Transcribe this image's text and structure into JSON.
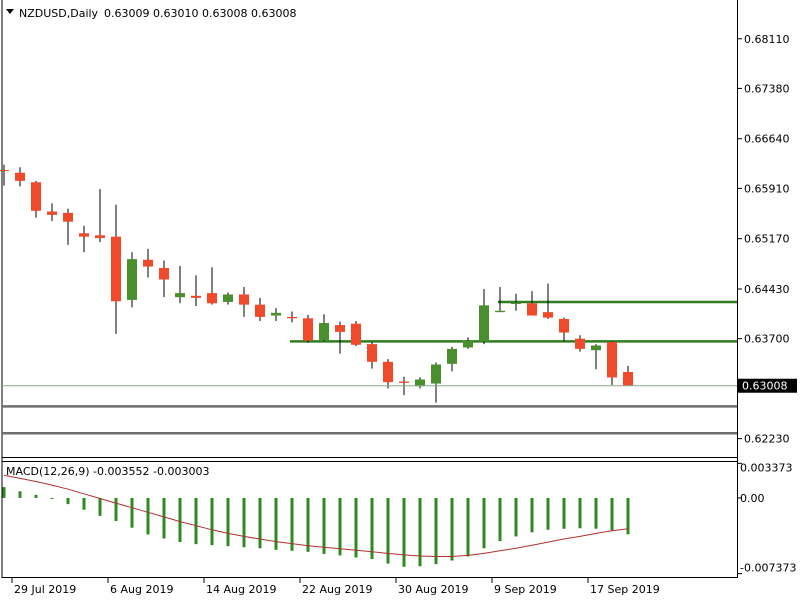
{
  "chart_data": [
    {
      "type": "candlestick",
      "symbol_label": "NZDUSD,Daily",
      "ohlc_label": "0.63009 0.63010 0.63008 0.63008",
      "current_price_label": "0.63008",
      "current_price": 0.63008,
      "y_range": [
        0.6196,
        0.6868
      ],
      "y_ticks": [
        "0.68110",
        "0.67380",
        "0.66640",
        "0.65910",
        "0.65170",
        "0.64430",
        "0.63700",
        "0.62230"
      ],
      "x_ticks": [
        {
          "label": "29 Jul 2019",
          "bar": 1
        },
        {
          "label": "6 Aug 2019",
          "bar": 7
        },
        {
          "label": "14 Aug 2019",
          "bar": 13
        },
        {
          "label": "22 Aug 2019",
          "bar": 19
        },
        {
          "label": "30 Aug 2019",
          "bar": 25
        },
        {
          "label": "9 Sep 2019",
          "bar": 31
        },
        {
          "label": "17 Sep 2019",
          "bar": 37
        }
      ],
      "candles": [
        {
          "o": 0.6618,
          "h": 0.6626,
          "l": 0.6595,
          "c": 0.6617
        },
        {
          "o": 0.6614,
          "h": 0.6622,
          "l": 0.6594,
          "c": 0.6602
        },
        {
          "o": 0.66,
          "h": 0.6602,
          "l": 0.6548,
          "c": 0.6558
        },
        {
          "o": 0.6557,
          "h": 0.6569,
          "l": 0.6543,
          "c": 0.6552
        },
        {
          "o": 0.6555,
          "h": 0.6561,
          "l": 0.6508,
          "c": 0.6542
        },
        {
          "o": 0.6525,
          "h": 0.6536,
          "l": 0.6497,
          "c": 0.652
        },
        {
          "o": 0.6522,
          "h": 0.659,
          "l": 0.6512,
          "c": 0.6518
        },
        {
          "o": 0.652,
          "h": 0.6567,
          "l": 0.6377,
          "c": 0.6425
        },
        {
          "o": 0.6427,
          "h": 0.6497,
          "l": 0.6416,
          "c": 0.6487
        },
        {
          "o": 0.6486,
          "h": 0.6502,
          "l": 0.646,
          "c": 0.6476
        },
        {
          "o": 0.6474,
          "h": 0.6485,
          "l": 0.6431,
          "c": 0.6457
        },
        {
          "o": 0.6431,
          "h": 0.6477,
          "l": 0.6422,
          "c": 0.6437
        },
        {
          "o": 0.6433,
          "h": 0.6463,
          "l": 0.6418,
          "c": 0.643
        },
        {
          "o": 0.6437,
          "h": 0.6475,
          "l": 0.642,
          "c": 0.6422
        },
        {
          "o": 0.6424,
          "h": 0.6438,
          "l": 0.642,
          "c": 0.6435
        },
        {
          "o": 0.6435,
          "h": 0.6446,
          "l": 0.6402,
          "c": 0.642
        },
        {
          "o": 0.642,
          "h": 0.643,
          "l": 0.6396,
          "c": 0.6402
        },
        {
          "o": 0.6404,
          "h": 0.6415,
          "l": 0.6396,
          "c": 0.6408
        },
        {
          "o": 0.6402,
          "h": 0.641,
          "l": 0.6394,
          "c": 0.64
        },
        {
          "o": 0.64,
          "h": 0.6405,
          "l": 0.6364,
          "c": 0.6367
        },
        {
          "o": 0.6368,
          "h": 0.6406,
          "l": 0.6366,
          "c": 0.6393
        },
        {
          "o": 0.639,
          "h": 0.6395,
          "l": 0.6348,
          "c": 0.638
        },
        {
          "o": 0.6392,
          "h": 0.6396,
          "l": 0.6359,
          "c": 0.6361
        },
        {
          "o": 0.6362,
          "h": 0.6365,
          "l": 0.6326,
          "c": 0.6336
        },
        {
          "o": 0.6336,
          "h": 0.634,
          "l": 0.6297,
          "c": 0.6306
        },
        {
          "o": 0.6307,
          "h": 0.6314,
          "l": 0.6287,
          "c": 0.6305
        },
        {
          "o": 0.63,
          "h": 0.6313,
          "l": 0.6297,
          "c": 0.631
        },
        {
          "o": 0.6304,
          "h": 0.6335,
          "l": 0.6276,
          "c": 0.6332
        },
        {
          "o": 0.6333,
          "h": 0.6358,
          "l": 0.6322,
          "c": 0.6355
        },
        {
          "o": 0.6357,
          "h": 0.6372,
          "l": 0.6355,
          "c": 0.6367
        },
        {
          "o": 0.6366,
          "h": 0.6443,
          "l": 0.6362,
          "c": 0.6419
        },
        {
          "o": 0.6409,
          "h": 0.6446,
          "l": 0.6409,
          "c": 0.6411
        },
        {
          "o": 0.6421,
          "h": 0.6436,
          "l": 0.6411,
          "c": 0.6423
        },
        {
          "o": 0.6422,
          "h": 0.644,
          "l": 0.6404,
          "c": 0.6404
        },
        {
          "o": 0.6409,
          "h": 0.6451,
          "l": 0.6399,
          "c": 0.6401
        },
        {
          "o": 0.6399,
          "h": 0.6401,
          "l": 0.6366,
          "c": 0.6379
        },
        {
          "o": 0.637,
          "h": 0.6375,
          "l": 0.6351,
          "c": 0.6355
        },
        {
          "o": 0.6353,
          "h": 0.6362,
          "l": 0.6325,
          "c": 0.636
        },
        {
          "o": 0.6365,
          "h": 0.6366,
          "l": 0.6302,
          "c": 0.6313
        },
        {
          "o": 0.6321,
          "h": 0.633,
          "l": 0.6301,
          "c": 0.6301
        }
      ],
      "lines": [
        {
          "kind": "horizontal",
          "price": 0.6424,
          "from_bar": 31,
          "to_bar": 45,
          "color": "#2e7d1f"
        },
        {
          "kind": "horizontal",
          "price": 0.6366,
          "from_bar": 18,
          "to_bar": 45,
          "color": "#2e7d1f"
        },
        {
          "kind": "horizontal",
          "price": 0.62705,
          "from_bar": 0,
          "to_bar": 45,
          "color": "#6e6e6e"
        },
        {
          "kind": "horizontal",
          "price": 0.6231,
          "from_bar": 0,
          "to_bar": 45,
          "color": "#6e6e6e"
        }
      ],
      "colors": {
        "bull": "#4a8f2d",
        "bear": "#f04a2a",
        "wick": "#000000",
        "price_line": "#8aa88a",
        "price_box": "#000000"
      }
    },
    {
      "type": "bar+line",
      "indicator_label": "MACD(12,26,9) -0.003552 -0.003003",
      "y_range": [
        -0.0077,
        0.0035
      ],
      "y_ticks": [
        "0.003373",
        "0.00",
        "-0.007373"
      ],
      "histogram": [
        0.00105,
        0.00065,
        0.0003,
        -0.0001,
        -0.0006,
        -0.00115,
        -0.00175,
        -0.00225,
        -0.0029,
        -0.00355,
        -0.00395,
        -0.0043,
        -0.0045,
        -0.0046,
        -0.0047,
        -0.0048,
        -0.0049,
        -0.00505,
        -0.00515,
        -0.00525,
        -0.00545,
        -0.0056,
        -0.0058,
        -0.00595,
        -0.0064,
        -0.0067,
        -0.00665,
        -0.00645,
        -0.0061,
        -0.0057,
        -0.0049,
        -0.0042,
        -0.00375,
        -0.00335,
        -0.0031,
        -0.003,
        -0.00295,
        -0.003,
        -0.00315,
        -0.00355
      ],
      "signal": [
        0.0022,
        0.0019,
        0.0016,
        0.00125,
        0.00085,
        0.0004,
        -5e-05,
        -0.0005,
        -0.00095,
        -0.0014,
        -0.00185,
        -0.0023,
        -0.0027,
        -0.0031,
        -0.00345,
        -0.00375,
        -0.004,
        -0.00425,
        -0.00445,
        -0.00465,
        -0.0048,
        -0.00495,
        -0.0051,
        -0.00525,
        -0.0054,
        -0.00555,
        -0.00565,
        -0.0057,
        -0.0057,
        -0.0056,
        -0.0054,
        -0.00515,
        -0.0049,
        -0.0046,
        -0.0043,
        -0.004,
        -0.00375,
        -0.00345,
        -0.0032,
        -0.003
      ],
      "colors": {
        "histogram": "#2e8b1f",
        "signal": "#b03030"
      }
    }
  ]
}
